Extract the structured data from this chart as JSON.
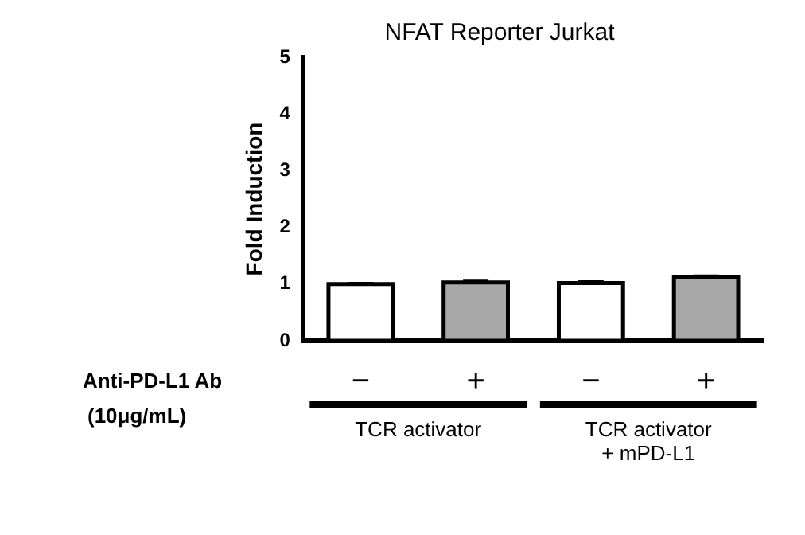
{
  "chart_data": {
    "type": "bar",
    "title": "NFAT Reporter Jurkat",
    "ylabel": "Fold Induction",
    "xlabel": "Anti-PD-L1 Ab\n(10μg/mL)",
    "categories": [
      "−",
      "+",
      "−",
      "+"
    ],
    "values": [
      1.0,
      1.03,
      1.02,
      1.12
    ],
    "errors": [
      0.01,
      0.02,
      0.02,
      0.02
    ],
    "colors": [
      "#ffffff",
      "#a8a8a8",
      "#ffffff",
      "#a8a8a8"
    ],
    "ylim": [
      0,
      5
    ],
    "yticks": [
      0,
      1,
      2,
      3,
      4,
      5
    ],
    "grid": false,
    "legend": false,
    "annotations": [
      "TCR activator",
      "TCR activator\n+ mPD-L1"
    ]
  }
}
